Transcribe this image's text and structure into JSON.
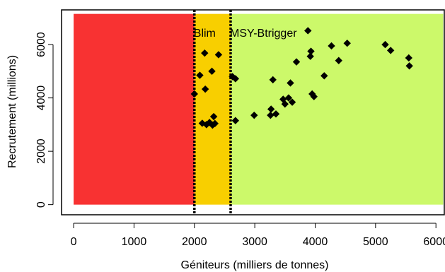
{
  "chart_data": {
    "type": "scatter",
    "title": "",
    "xlabel": "Géniteurs (milliers de tonnes)",
    "ylabel": "Recrutement (millions)",
    "xlim": [
      -200,
      6150
    ],
    "ylim": [
      -380,
      7300
    ],
    "x_ticks": [
      0,
      1000,
      2000,
      3000,
      4000,
      5000,
      6000
    ],
    "y_ticks": [
      0,
      2000,
      4000,
      6000
    ],
    "grid": false,
    "legend": "none",
    "zones": [
      {
        "from": 0,
        "to": 2000,
        "y_from": 0,
        "y_to": 7150,
        "color": "#f83232"
      },
      {
        "from": 2000,
        "to": 2600,
        "y_from": 0,
        "y_to": 7150,
        "color": "#f8cf00"
      },
      {
        "from": 2600,
        "to": 6120,
        "y_from": 0,
        "y_to": 7150,
        "color": "#ccf96a"
      }
    ],
    "reference_lines": [
      {
        "label": "Blim",
        "x": 2000,
        "style": "dotted",
        "color": "#000000"
      },
      {
        "label": "MSY-Btrigger",
        "x": 2600,
        "style": "dotted",
        "color": "#000000"
      }
    ],
    "marker": "diamond",
    "marker_color": "#000000",
    "points": [
      {
        "x": 2000,
        "y": 4150
      },
      {
        "x": 2090,
        "y": 4850
      },
      {
        "x": 2130,
        "y": 3050
      },
      {
        "x": 2170,
        "y": 5680
      },
      {
        "x": 2180,
        "y": 4330
      },
      {
        "x": 2200,
        "y": 3000
      },
      {
        "x": 2250,
        "y": 3080
      },
      {
        "x": 2290,
        "y": 5000
      },
      {
        "x": 2300,
        "y": 2980
      },
      {
        "x": 2320,
        "y": 3300
      },
      {
        "x": 2340,
        "y": 3040
      },
      {
        "x": 2400,
        "y": 5620
      },
      {
        "x": 2630,
        "y": 4800
      },
      {
        "x": 2680,
        "y": 4720
      },
      {
        "x": 2680,
        "y": 3150
      },
      {
        "x": 2990,
        "y": 3350
      },
      {
        "x": 3260,
        "y": 3350
      },
      {
        "x": 3270,
        "y": 3580
      },
      {
        "x": 3300,
        "y": 4680
      },
      {
        "x": 3350,
        "y": 3400
      },
      {
        "x": 3470,
        "y": 3950
      },
      {
        "x": 3500,
        "y": 3770
      },
      {
        "x": 3560,
        "y": 4000
      },
      {
        "x": 3590,
        "y": 4560
      },
      {
        "x": 3620,
        "y": 3840
      },
      {
        "x": 3690,
        "y": 5350
      },
      {
        "x": 3880,
        "y": 6520
      },
      {
        "x": 3920,
        "y": 5560
      },
      {
        "x": 3930,
        "y": 5750
      },
      {
        "x": 3950,
        "y": 4150
      },
      {
        "x": 3980,
        "y": 4050
      },
      {
        "x": 4150,
        "y": 4830
      },
      {
        "x": 4270,
        "y": 5950
      },
      {
        "x": 4390,
        "y": 5400
      },
      {
        "x": 4530,
        "y": 6050
      },
      {
        "x": 5160,
        "y": 6000
      },
      {
        "x": 5250,
        "y": 5780
      },
      {
        "x": 5550,
        "y": 5500
      },
      {
        "x": 5560,
        "y": 5200
      }
    ]
  }
}
